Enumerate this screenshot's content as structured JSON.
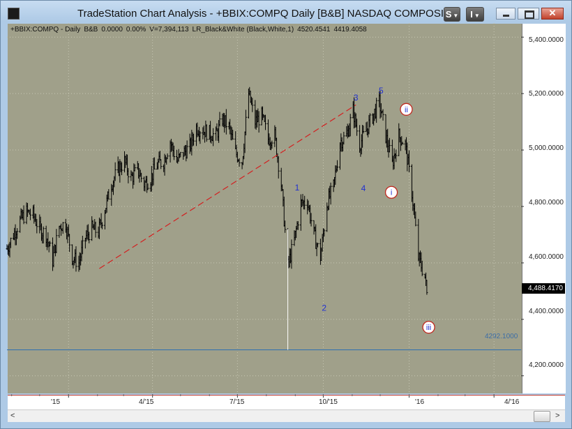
{
  "window": {
    "title": "TradeStation Chart Analysis - +BBIX:COMPQ Daily [B&B] NASDAQ COMPOSIT",
    "style_button_label": "S",
    "indicator_button_label": "I"
  },
  "status_line": {
    "symbol": "+BBIX:COMPQ - Daily",
    "tag": "B&B",
    "net_change": "0.0000",
    "pct_change": "0.00%",
    "volume": "V=7,394,113",
    "study": "LR_Black&White (Black,White,1)",
    "value1": "4520.4541",
    "value2": "4419.4058"
  },
  "price_axis": {
    "labels": [
      "5,400.0000",
      "5,200.0000",
      "5,000.0000",
      "4,800.0000",
      "4,600.0000",
      "4,400.0000",
      "4,200.0000"
    ],
    "last_price_label": "4,488.4170"
  },
  "time_axis": {
    "labels": [
      "'15",
      "4/'15",
      "7/'15",
      "10/'15",
      "'16",
      "4/'16"
    ]
  },
  "chart_data": {
    "type": "ohlc",
    "title": "+BBIX:COMPQ Daily",
    "ylim": [
      4140,
      5450
    ],
    "yticks": [
      4200,
      4400,
      4600,
      4800,
      5000,
      5200,
      5400
    ],
    "x_range": [
      "2014-10-27",
      "2016-04-30"
    ],
    "xticks": [
      {
        "date": "2015-01-01",
        "label": "'15"
      },
      {
        "date": "2015-04-01",
        "label": "4/'15"
      },
      {
        "date": "2015-07-01",
        "label": "7/'15"
      },
      {
        "date": "2015-10-01",
        "label": "10/'15"
      },
      {
        "date": "2016-01-01",
        "label": "'16"
      },
      {
        "date": "2016-04-01",
        "label": "4/'16"
      }
    ],
    "last_price": 4488.417,
    "horizontal_level": {
      "value": 4292.1,
      "label": "4292.1000",
      "color": "#2e6fb0"
    },
    "trendline": {
      "from": {
        "date": "2015-02-03",
        "price": 4580
      },
      "to": {
        "date": "2015-11-05",
        "price": 5160
      },
      "color": "#d32020",
      "style": "dashed"
    },
    "close_path": [
      {
        "date": "2014-10-27",
        "close": 4650
      },
      {
        "date": "2014-11-03",
        "close": 4700
      },
      {
        "date": "2014-11-10",
        "close": 4750
      },
      {
        "date": "2014-11-17",
        "close": 4780
      },
      {
        "date": "2014-11-24",
        "close": 4770
      },
      {
        "date": "2014-12-01",
        "close": 4720
      },
      {
        "date": "2014-12-08",
        "close": 4700
      },
      {
        "date": "2014-12-15",
        "close": 4610
      },
      {
        "date": "2014-12-22",
        "close": 4730
      },
      {
        "date": "2014-12-29",
        "close": 4740
      },
      {
        "date": "2015-01-05",
        "close": 4620
      },
      {
        "date": "2015-01-12",
        "close": 4600
      },
      {
        "date": "2015-01-19",
        "close": 4690
      },
      {
        "date": "2015-01-26",
        "close": 4720
      },
      {
        "date": "2015-02-02",
        "close": 4710
      },
      {
        "date": "2015-02-09",
        "close": 4790
      },
      {
        "date": "2015-02-16",
        "close": 4880
      },
      {
        "date": "2015-02-23",
        "close": 4930
      },
      {
        "date": "2015-03-02",
        "close": 4960
      },
      {
        "date": "2015-03-09",
        "close": 4900
      },
      {
        "date": "2015-03-16",
        "close": 4930
      },
      {
        "date": "2015-03-23",
        "close": 4880
      },
      {
        "date": "2015-03-30",
        "close": 4900
      },
      {
        "date": "2015-04-06",
        "close": 4950
      },
      {
        "date": "2015-04-13",
        "close": 4960
      },
      {
        "date": "2015-04-20",
        "close": 5030
      },
      {
        "date": "2015-04-27",
        "close": 4960
      },
      {
        "date": "2015-05-04",
        "close": 4990
      },
      {
        "date": "2015-05-11",
        "close": 5010
      },
      {
        "date": "2015-05-18",
        "close": 5080
      },
      {
        "date": "2015-05-25",
        "close": 5070
      },
      {
        "date": "2015-06-01",
        "close": 5060
      },
      {
        "date": "2015-06-08",
        "close": 5050
      },
      {
        "date": "2015-06-15",
        "close": 5110
      },
      {
        "date": "2015-06-22",
        "close": 5080
      },
      {
        "date": "2015-06-29",
        "close": 4990
      },
      {
        "date": "2015-07-06",
        "close": 4960
      },
      {
        "date": "2015-07-13",
        "close": 5200
      },
      {
        "date": "2015-07-20",
        "close": 5100
      },
      {
        "date": "2015-07-27",
        "close": 5120
      },
      {
        "date": "2015-08-03",
        "close": 5040
      },
      {
        "date": "2015-08-10",
        "close": 5050
      },
      {
        "date": "2015-08-17",
        "close": 4880
      },
      {
        "date": "2015-08-24",
        "close": 4590
      },
      {
        "date": "2015-08-31",
        "close": 4680
      },
      {
        "date": "2015-09-07",
        "close": 4810
      },
      {
        "date": "2015-09-14",
        "close": 4820
      },
      {
        "date": "2015-09-21",
        "close": 4700
      },
      {
        "date": "2015-09-28",
        "close": 4620
      },
      {
        "date": "2015-10-05",
        "close": 4810
      },
      {
        "date": "2015-10-12",
        "close": 4870
      },
      {
        "date": "2015-10-19",
        "close": 5030
      },
      {
        "date": "2015-10-26",
        "close": 5050
      },
      {
        "date": "2015-11-02",
        "close": 5140
      },
      {
        "date": "2015-11-09",
        "close": 5020
      },
      {
        "date": "2015-11-16",
        "close": 5070
      },
      {
        "date": "2015-11-23",
        "close": 5120
      },
      {
        "date": "2015-11-30",
        "close": 5170
      },
      {
        "date": "2015-12-07",
        "close": 5050
      },
      {
        "date": "2015-12-14",
        "close": 4950
      },
      {
        "date": "2015-12-21",
        "close": 5050
      },
      {
        "date": "2015-12-28",
        "close": 5020
      },
      {
        "date": "2016-01-04",
        "close": 4850
      },
      {
        "date": "2016-01-11",
        "close": 4620
      },
      {
        "date": "2016-01-18",
        "close": 4550
      },
      {
        "date": "2016-01-20",
        "close": 4490
      }
    ],
    "annotations": [
      {
        "label": "1",
        "date": "2015-09-03",
        "price": 4867,
        "style": "plain"
      },
      {
        "label": "2",
        "date": "2015-10-02",
        "price": 4440,
        "style": "plain"
      },
      {
        "label": "3",
        "date": "2015-11-05",
        "price": 5185,
        "style": "plain"
      },
      {
        "label": "4",
        "date": "2015-11-13",
        "price": 4864,
        "style": "plain"
      },
      {
        "label": "5",
        "date": "2015-12-02",
        "price": 5210,
        "style": "plain"
      },
      {
        "label": "i",
        "date": "2015-12-13",
        "price": 4850,
        "style": "circle"
      },
      {
        "label": "ii",
        "date": "2015-12-29",
        "price": 5144,
        "style": "circle"
      },
      {
        "label": "iii",
        "date": "2016-01-22",
        "price": 4372,
        "style": "circle"
      }
    ],
    "colors": {
      "background": "#a0a08a",
      "bars": "#000000"
    }
  }
}
